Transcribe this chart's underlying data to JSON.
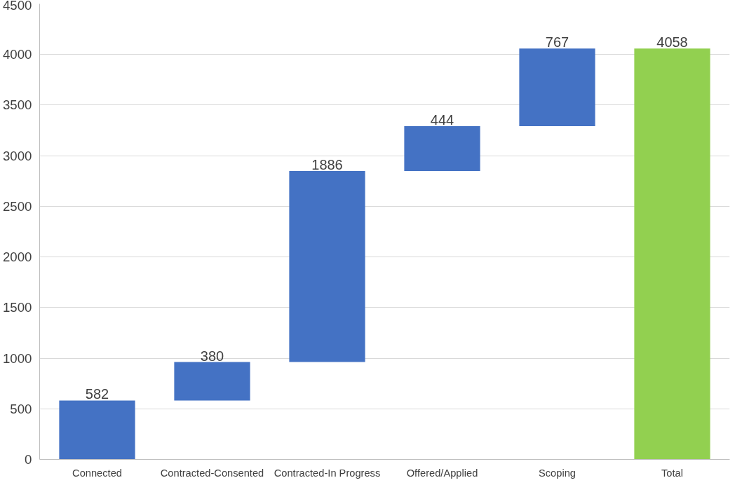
{
  "chart_data": {
    "type": "bar",
    "categories": [
      "Connected",
      "Contracted-Consented",
      "Contracted-In Progress",
      "Offered/Applied",
      "Scoping",
      "Total"
    ],
    "values": [
      582,
      380,
      1886,
      444,
      767,
      4058
    ],
    "base": [
      0,
      582,
      962,
      2848,
      3292,
      0
    ],
    "colors": [
      "#4472c4",
      "#4472c4",
      "#4472c4",
      "#4472c4",
      "#4472c4",
      "#92d050"
    ],
    "ylim": [
      0,
      4500
    ],
    "yticks": [
      0,
      500,
      1000,
      1500,
      2000,
      2500,
      3000,
      3500,
      4000,
      4500
    ],
    "grid": "y",
    "data_labels": true
  }
}
